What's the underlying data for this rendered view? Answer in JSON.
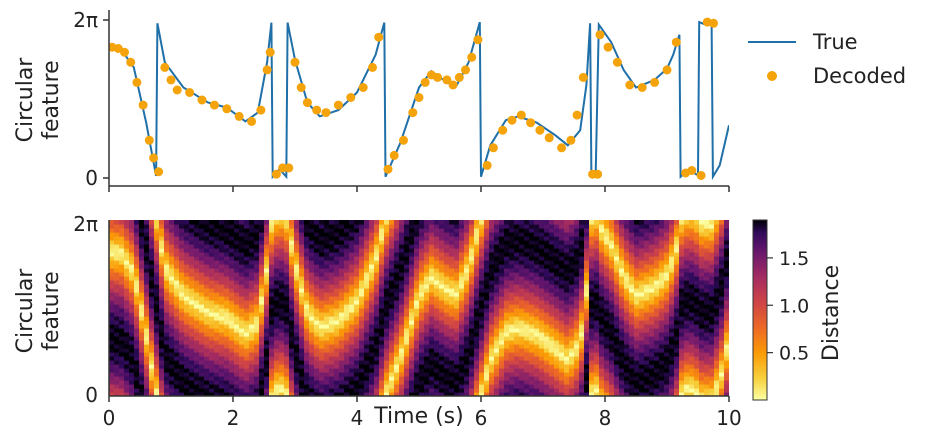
{
  "chart_data": [
    {
      "type": "line",
      "panel": "top",
      "ylabel_line1": "Circular",
      "ylabel_line2": "feature",
      "xlim": [
        0,
        10
      ],
      "ylim": [
        0,
        6.2832
      ],
      "ytick_labels": [
        "0",
        "2π"
      ],
      "xtick_values": [
        0,
        2,
        4,
        6,
        8,
        10
      ],
      "legend": {
        "placement": "right",
        "true_label": "True",
        "decoded_label": "Decoded"
      },
      "colors": {
        "true": "#1f6fa8",
        "decoded": "#f5a30a"
      },
      "true_keypoints": [
        [
          0.0,
          5.2
        ],
        [
          0.2,
          5.1
        ],
        [
          0.4,
          4.4
        ],
        [
          0.6,
          2.2
        ],
        [
          0.76,
          0.08
        ],
        [
          0.78,
          6.15
        ],
        [
          0.9,
          4.6
        ],
        [
          1.2,
          3.6
        ],
        [
          1.6,
          3.0
        ],
        [
          1.9,
          2.8
        ],
        [
          2.2,
          2.25
        ],
        [
          2.4,
          2.6
        ],
        [
          2.55,
          4.6
        ],
        [
          2.62,
          6.18
        ],
        [
          2.64,
          0.05
        ],
        [
          2.75,
          0.35
        ],
        [
          2.86,
          0.05
        ],
        [
          2.88,
          6.18
        ],
        [
          3.0,
          4.7
        ],
        [
          3.2,
          3.0
        ],
        [
          3.4,
          2.45
        ],
        [
          3.7,
          2.7
        ],
        [
          4.0,
          3.4
        ],
        [
          4.3,
          4.9
        ],
        [
          4.44,
          6.18
        ],
        [
          4.46,
          0.05
        ],
        [
          4.7,
          1.4
        ],
        [
          5.0,
          3.6
        ],
        [
          5.2,
          4.25
        ],
        [
          5.45,
          3.8
        ],
        [
          5.6,
          3.65
        ],
        [
          5.8,
          4.6
        ],
        [
          5.98,
          6.2
        ],
        [
          6.0,
          0.05
        ],
        [
          6.15,
          1.3
        ],
        [
          6.4,
          2.3
        ],
        [
          6.6,
          2.45
        ],
        [
          6.9,
          2.2
        ],
        [
          7.2,
          1.7
        ],
        [
          7.4,
          1.3
        ],
        [
          7.6,
          1.9
        ],
        [
          7.7,
          3.7
        ],
        [
          7.76,
          6.15
        ],
        [
          7.78,
          0.1
        ],
        [
          7.85,
          0.2
        ],
        [
          7.9,
          6.1
        ],
        [
          8.1,
          5.4
        ],
        [
          8.3,
          4.3
        ],
        [
          8.5,
          3.6
        ],
        [
          8.8,
          3.9
        ],
        [
          9.0,
          4.35
        ],
        [
          9.1,
          4.9
        ],
        [
          9.2,
          5.7
        ],
        [
          9.22,
          0.05
        ],
        [
          9.35,
          0.35
        ],
        [
          9.5,
          0.1
        ],
        [
          9.52,
          6.2
        ],
        [
          9.62,
          6.1
        ],
        [
          9.65,
          6.2
        ],
        [
          9.72,
          6.15
        ],
        [
          9.74,
          0.05
        ],
        [
          9.85,
          0.5
        ],
        [
          10.0,
          2.1
        ]
      ],
      "decoded_points": [
        [
          0.05,
          5.2
        ],
        [
          0.15,
          5.15
        ],
        [
          0.25,
          5.0
        ],
        [
          0.35,
          4.6
        ],
        [
          0.45,
          3.8
        ],
        [
          0.55,
          2.9
        ],
        [
          0.65,
          1.5
        ],
        [
          0.72,
          0.8
        ],
        [
          0.8,
          0.25
        ],
        [
          0.9,
          4.4
        ],
        [
          1.0,
          3.9
        ],
        [
          1.1,
          3.5
        ],
        [
          1.3,
          3.4
        ],
        [
          1.5,
          3.1
        ],
        [
          1.7,
          2.9
        ],
        [
          1.9,
          2.75
        ],
        [
          2.1,
          2.45
        ],
        [
          2.3,
          2.25
        ],
        [
          2.45,
          2.7
        ],
        [
          2.55,
          4.3
        ],
        [
          2.6,
          5.0
        ],
        [
          2.7,
          0.15
        ],
        [
          2.8,
          0.4
        ],
        [
          2.9,
          0.4
        ],
        [
          3.0,
          4.6
        ],
        [
          3.1,
          3.6
        ],
        [
          3.2,
          3.0
        ],
        [
          3.35,
          2.7
        ],
        [
          3.5,
          2.6
        ],
        [
          3.7,
          2.9
        ],
        [
          3.9,
          3.2
        ],
        [
          4.1,
          3.6
        ],
        [
          4.25,
          4.4
        ],
        [
          4.35,
          5.6
        ],
        [
          4.5,
          0.35
        ],
        [
          4.6,
          0.9
        ],
        [
          4.75,
          1.5
        ],
        [
          4.9,
          2.6
        ],
        [
          5.0,
          3.2
        ],
        [
          5.1,
          3.8
        ],
        [
          5.2,
          4.1
        ],
        [
          5.3,
          4.0
        ],
        [
          5.45,
          3.9
        ],
        [
          5.55,
          3.7
        ],
        [
          5.65,
          4.0
        ],
        [
          5.75,
          4.3
        ],
        [
          5.85,
          4.8
        ],
        [
          5.95,
          5.5
        ],
        [
          6.1,
          0.5
        ],
        [
          6.2,
          1.2
        ],
        [
          6.35,
          1.9
        ],
        [
          6.5,
          2.3
        ],
        [
          6.65,
          2.5
        ],
        [
          6.8,
          2.2
        ],
        [
          6.95,
          1.9
        ],
        [
          7.1,
          1.6
        ],
        [
          7.3,
          1.2
        ],
        [
          7.45,
          1.5
        ],
        [
          7.55,
          2.5
        ],
        [
          7.65,
          4.0
        ],
        [
          7.8,
          0.15
        ],
        [
          7.88,
          0.15
        ],
        [
          7.92,
          5.7
        ],
        [
          8.05,
          5.2
        ],
        [
          8.2,
          4.6
        ],
        [
          8.4,
          3.7
        ],
        [
          8.6,
          3.6
        ],
        [
          8.8,
          3.8
        ],
        [
          9.0,
          4.3
        ],
        [
          9.15,
          5.4
        ],
        [
          9.3,
          0.2
        ],
        [
          9.4,
          0.3
        ],
        [
          9.55,
          0.1
        ],
        [
          9.65,
          6.2
        ],
        [
          9.75,
          6.15
        ]
      ]
    },
    {
      "type": "heatmap",
      "panel": "bottom",
      "xlabel": "Time (s)",
      "ylabel_line1": "Circular",
      "ylabel_line2": "feature",
      "xlim": [
        0,
        10
      ],
      "ylim": [
        0,
        6.2832
      ],
      "xtick_labels": [
        "0",
        "2",
        "4",
        "6",
        "8",
        "10"
      ],
      "ytick_labels": [
        "0",
        "2π"
      ],
      "colorbar": {
        "label": "Distance",
        "range": [
          0.0,
          1.9
        ],
        "tick_labels": [
          "0.5",
          "1.0",
          "1.5"
        ],
        "tick_values": [
          0.5,
          1.0,
          1.5
        ],
        "colormap": "inferno_r"
      },
      "value_note": "low distance (bright) tracks the true circular feature; high distance (dark) at the opposite phase"
    }
  ]
}
